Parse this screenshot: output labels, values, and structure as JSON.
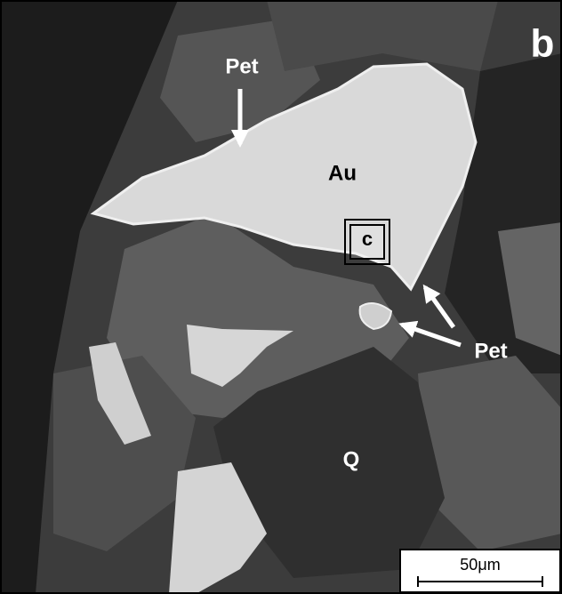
{
  "panel_label": "b",
  "labels": [
    {
      "text": "Pet"
    },
    {
      "text": "Au"
    },
    {
      "text": "c"
    },
    {
      "text": "Pet"
    },
    {
      "text": "Q"
    }
  ],
  "scale_bar": {
    "label": "50μm"
  }
}
